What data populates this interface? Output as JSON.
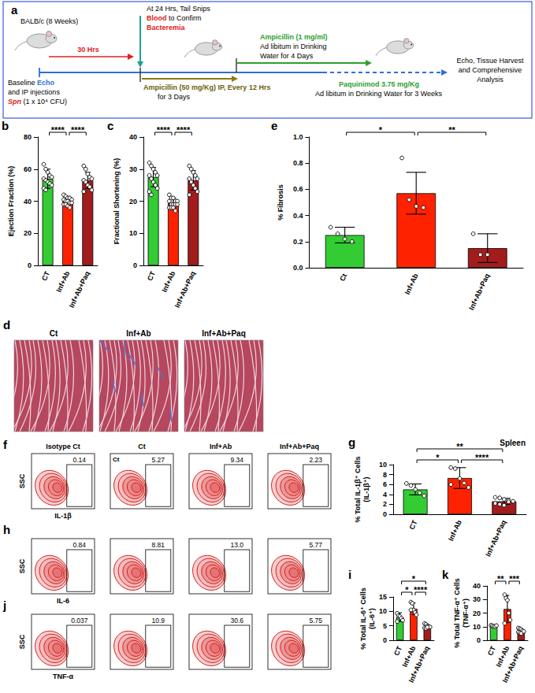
{
  "schematic": {
    "panel": "a",
    "strain": "BALB/c (8 Weeks)",
    "tail_snip": [
      "At 24 Hrs, Tail Snips",
      "Blood to Confirm",
      "Bacteremia"
    ],
    "interval": "30 Hrs",
    "baseline": [
      "Baseline Echo",
      "and IP injections",
      "Spn (1 x 10⁴ CFU)"
    ],
    "ampicillin_ip": [
      "Ampicillin (50 mg/Kg) IP, Every 12 Hrs",
      "for 3 Days"
    ],
    "ampicillin_water": [
      "Ampicillin (1 mg/ml)",
      "Ad libitum in Drinking",
      "Water for 4 Days"
    ],
    "paquinimod": [
      "Paquinimod 3.75 mg/Kg",
      "Ad libitum in Drinking Water for 3 Weeks"
    ],
    "endpoint": [
      "Echo, Tissue Harvest",
      "and Comprehensive",
      "Analysis"
    ]
  },
  "histology": {
    "panel": "d",
    "titles": [
      "Ct",
      "Inf+Ab",
      "Inf+Ab+Paq"
    ]
  },
  "flow": [
    {
      "panel": "f",
      "x_label": "IL-1β",
      "y_label": "SSC",
      "headers": [
        "Isotype Ct",
        "Ct",
        "Inf+Ab",
        "Inf+Ab+Paq"
      ],
      "gates": [
        "0.14",
        "5.27",
        "9.34",
        "2.23"
      ],
      "annotation": "Ct"
    },
    {
      "panel": "h",
      "x_label": "IL-6",
      "y_label": "SSC",
      "gates": [
        "0.84",
        "8.81",
        "13.0",
        "5.77"
      ]
    },
    {
      "panel": "j",
      "x_label": "TNF-α",
      "y_label": "SSC",
      "gates": [
        "0.037",
        "10.9",
        "30.6",
        "5.75"
      ]
    }
  ],
  "chart_data": [
    {
      "panel": "b",
      "type": "bar",
      "categories": [
        "CT",
        "Inf+Ab",
        "Inf+Ab+Paq"
      ],
      "ylabel": "Ejection Fraction (%)",
      "values": [
        54,
        40,
        53
      ],
      "error": [
        6,
        3,
        5
      ],
      "points": [
        [
          63,
          60,
          58,
          56,
          55,
          54,
          53,
          52,
          51,
          50,
          48,
          47
        ],
        [
          44,
          43,
          42,
          42,
          41,
          41,
          40,
          40,
          39,
          39,
          38,
          38,
          37,
          36
        ],
        [
          62,
          60,
          57,
          55,
          54,
          53,
          52,
          50,
          49,
          47,
          46
        ]
      ],
      "colors": [
        "#33cc33",
        "#ff2200",
        "#a31c1c"
      ],
      "ylim": [
        0,
        80
      ],
      "yticks": [
        0,
        20,
        40,
        60,
        80
      ],
      "grid": false,
      "significance": [
        {
          "pair": [
            0,
            1
          ],
          "label": "****"
        },
        {
          "pair": [
            1,
            2
          ],
          "label": "****"
        }
      ]
    },
    {
      "panel": "c",
      "type": "bar",
      "categories": [
        "CT",
        "Inf+Ab",
        "Inf+Ab+Paq"
      ],
      "ylabel": "Fractional Shortening (%)",
      "values": [
        27.5,
        19.5,
        26.5
      ],
      "error": [
        3,
        1.5,
        3
      ],
      "points": [
        [
          32,
          31,
          30,
          29,
          28,
          28,
          27,
          26,
          25,
          24,
          23,
          22
        ],
        [
          22,
          21,
          21,
          20,
          20,
          20,
          19,
          19,
          19,
          19,
          18,
          18,
          18,
          17
        ],
        [
          31,
          30,
          29,
          28,
          27,
          27,
          26,
          25,
          24,
          23,
          22
        ]
      ],
      "colors": [
        "#33cc33",
        "#ff2200",
        "#a31c1c"
      ],
      "ylim": [
        0,
        40
      ],
      "yticks": [
        0,
        10,
        20,
        30,
        40
      ],
      "grid": false,
      "significance": [
        {
          "pair": [
            0,
            1
          ],
          "label": "****"
        },
        {
          "pair": [
            1,
            2
          ],
          "label": "****"
        }
      ]
    },
    {
      "panel": "e",
      "type": "bar",
      "categories": [
        "Ct",
        "Inf+Ab",
        "Inf+Ab+Paq"
      ],
      "ylabel": "% Fibrosis",
      "values": [
        0.25,
        0.57,
        0.15
      ],
      "error": [
        0.06,
        0.16,
        0.11
      ],
      "points": [
        [
          0.31,
          0.26,
          0.22,
          0.2
        ],
        [
          0.84,
          0.52,
          0.47,
          0.46
        ],
        [
          0.26,
          0.1,
          0.1
        ]
      ],
      "colors": [
        "#33cc33",
        "#ff2200",
        "#a31c1c"
      ],
      "ylim": [
        0,
        1
      ],
      "yticks": [
        {
          "value": 0,
          "label": "0.0"
        },
        {
          "value": 0.2,
          "label": "0.2"
        },
        {
          "value": 0.4,
          "label": "0.4"
        },
        {
          "value": 0.6,
          "label": "0.6"
        },
        {
          "value": 0.8,
          "label": "0.8"
        },
        {
          "value": 1,
          "label": "1.0"
        }
      ],
      "grid": false,
      "significance": [
        {
          "pair": [
            0,
            1
          ],
          "label": "*"
        },
        {
          "pair": [
            1,
            2
          ],
          "label": "**"
        }
      ]
    },
    {
      "panel": "g",
      "type": "bar",
      "title": "Spleen",
      "categories": [
        "CT",
        "Inf+Ab",
        "Inf+Ab+Paq"
      ],
      "ylabel": "% Total IL-1β⁺ Cells (IL-1β⁺)",
      "values": [
        5.0,
        7.3,
        2.6
      ],
      "error": [
        1.1,
        2.1,
        0.6
      ],
      "points": [
        [
          6.2,
          5.8,
          5.0,
          4.3,
          3.7
        ],
        [
          9.4,
          9.2,
          7.2,
          6.3,
          5.4,
          6.0
        ],
        [
          3.4,
          3.3,
          3.0,
          2.8,
          2.6,
          2.2,
          2.0,
          1.8,
          2.5
        ]
      ],
      "colors": [
        "#33cc33",
        "#ff2200",
        "#a31c1c"
      ],
      "ylim": [
        0,
        10
      ],
      "yticks": [
        0,
        2,
        4,
        6,
        8,
        10
      ],
      "grid": false,
      "significance": [
        {
          "pair": [
            0,
            1
          ],
          "label": "*"
        },
        {
          "pair": [
            1,
            2
          ],
          "label": "****"
        },
        {
          "pair": [
            0,
            2
          ],
          "label": "**"
        }
      ]
    },
    {
      "panel": "i",
      "type": "bar",
      "categories": [
        "CT",
        "Inf+Ab",
        "Inf+Ab+Paq"
      ],
      "ylabel": "% Total IL-6⁺ Cells (IL-6⁺)",
      "values": [
        8.0,
        10.9,
        4.8
      ],
      "error": [
        1.5,
        2.0,
        0.6
      ],
      "points": [
        [
          9.3,
          8.5,
          8.2,
          7.6,
          6.9,
          6.5
        ],
        [
          13.2,
          12.8,
          10.5,
          9.6,
          8.8,
          10.5
        ],
        [
          5.8,
          5.5,
          5.0,
          4.8,
          4.6,
          4.3,
          4.1,
          4.5
        ]
      ],
      "colors": [
        "#33cc33",
        "#ff2200",
        "#a31c1c"
      ],
      "ylim": [
        0,
        15
      ],
      "yticks": [
        0,
        5,
        10,
        15
      ],
      "grid": false,
      "significance": [
        {
          "pair": [
            0,
            1
          ],
          "label": "*"
        },
        {
          "pair": [
            1,
            2
          ],
          "label": "****"
        },
        {
          "pair": [
            0,
            2
          ],
          "label": "*"
        }
      ]
    },
    {
      "panel": "k",
      "type": "bar",
      "categories": [
        "CT",
        "Inf+Ab",
        "Inf+Ab+Paq"
      ],
      "ylabel": "% Total TNF-α⁺ Cells (TNF-α⁺)",
      "values": [
        10.5,
        23,
        7
      ],
      "error": [
        0.8,
        10,
        1.5
      ],
      "points": [
        [
          11,
          10.6,
          10.2,
          10,
          10.8
        ],
        [
          33.5,
          31,
          29.5,
          20,
          15,
          12.5
        ],
        [
          9,
          8.5,
          8,
          7,
          6.5,
          6,
          5.5,
          5
        ]
      ],
      "colors": [
        "#33cc33",
        "#ff2200",
        "#a31c1c"
      ],
      "ylim": [
        0,
        40
      ],
      "yticks": [
        0,
        10,
        20,
        30,
        40
      ],
      "grid": false,
      "significance": [
        {
          "pair": [
            0,
            1
          ],
          "label": "**"
        },
        {
          "pair": [
            1,
            2
          ],
          "label": "***"
        }
      ]
    }
  ]
}
